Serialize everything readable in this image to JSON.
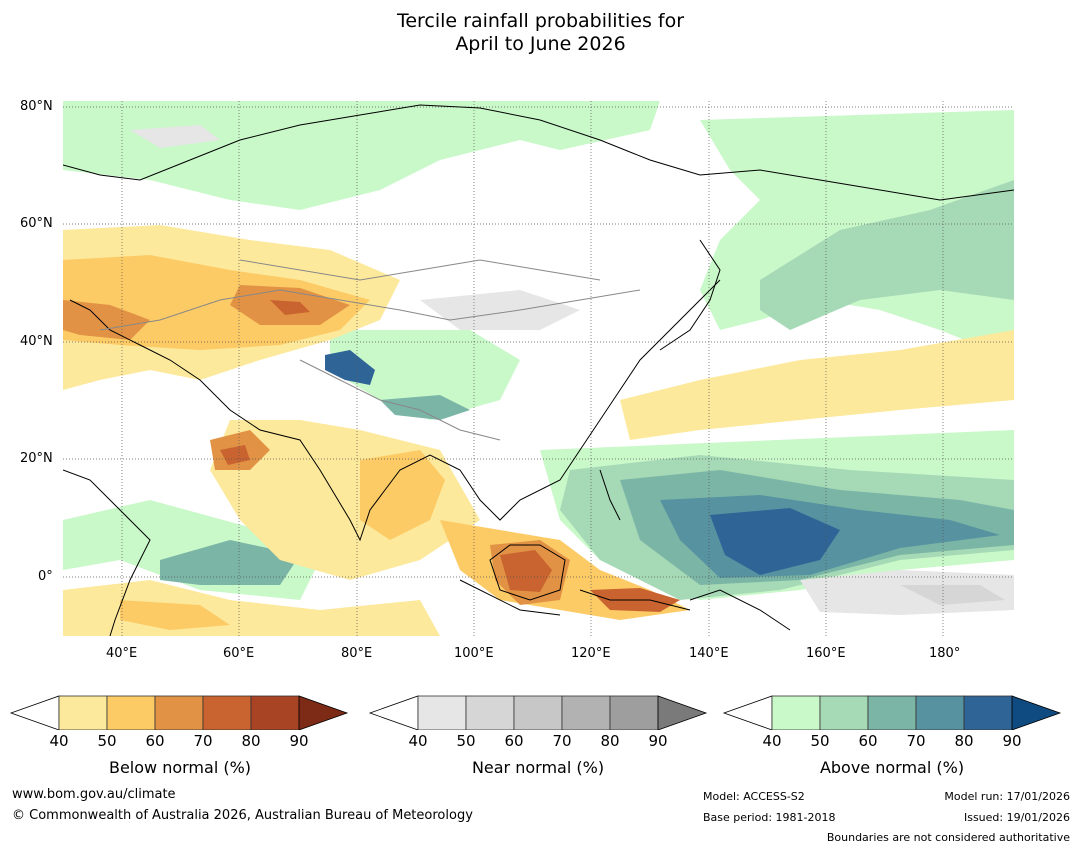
{
  "title": {
    "line1": "Tercile rainfall probabilities for",
    "line2": "April to June 2026"
  },
  "map": {
    "lat_labels": [
      "80°N",
      "60°N",
      "40°N",
      "20°N",
      "0°"
    ],
    "lon_labels": [
      "40°E",
      "60°E",
      "80°E",
      "100°E",
      "120°E",
      "140°E",
      "160°E",
      "180°"
    ],
    "lat_range": [
      -10,
      80
    ],
    "lon_range": [
      30,
      192
    ]
  },
  "colorbars": [
    {
      "label": "Below normal (%)",
      "ticks": [
        "40",
        "50",
        "60",
        "70",
        "80",
        "90"
      ],
      "colors": [
        "#ffffff",
        "#fde99c",
        "#fccb66",
        "#e29244",
        "#c96430",
        "#a84424",
        "#7d2a16"
      ]
    },
    {
      "label": "Near normal (%)",
      "ticks": [
        "40",
        "50",
        "60",
        "70",
        "80",
        "90"
      ],
      "colors": [
        "#ffffff",
        "#e6e6e6",
        "#d6d6d6",
        "#c7c7c7",
        "#b2b2b2",
        "#9e9e9e",
        "#7a7a7a"
      ]
    },
    {
      "label": "Above normal (%)",
      "ticks": [
        "40",
        "50",
        "60",
        "70",
        "80",
        "90"
      ],
      "colors": [
        "#ffffff",
        "#c9f8c9",
        "#a6d9b6",
        "#7bb5a6",
        "#5692a0",
        "#2f6497",
        "#0f4a80"
      ]
    }
  ],
  "footer": {
    "url": "www.bom.gov.au/climate",
    "copyright": "© Commonwealth of Australia 2026, Australian Bureau of Meteorology",
    "model": "Model: ACCESS-S2",
    "base_period": "Base period: 1981-2018",
    "model_run": "Model run: 17/01/2026",
    "issued": "Issued: 19/01/2026",
    "boundaries": "Boundaries are not considered authoritative"
  }
}
